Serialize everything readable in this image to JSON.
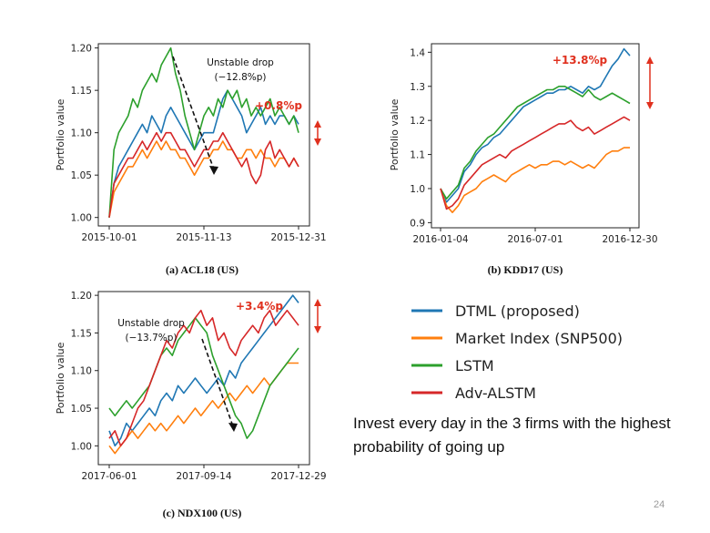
{
  "chart_data": [
    {
      "type": "line",
      "caption": "(a) ACL18 (US)",
      "ylabel": "Portfolio value",
      "ylim": [
        0.99,
        1.205
      ],
      "yticks": [
        "1.00",
        "1.05",
        "1.10",
        "1.15",
        "1.20"
      ],
      "xticks": [
        "2015-10-01",
        "2015-11-13",
        "2015-12-31"
      ],
      "annotation": [
        "Unstable drop",
        "(−12.8%p)"
      ],
      "gain_label": "+0.8%p",
      "series": [
        {
          "key": "dtml",
          "values": [
            1.0,
            1.04,
            1.06,
            1.07,
            1.08,
            1.09,
            1.1,
            1.11,
            1.1,
            1.12,
            1.11,
            1.1,
            1.12,
            1.13,
            1.12,
            1.11,
            1.1,
            1.09,
            1.08,
            1.09,
            1.1,
            1.1,
            1.1,
            1.12,
            1.14,
            1.15,
            1.14,
            1.13,
            1.12,
            1.1,
            1.11,
            1.12,
            1.13,
            1.11,
            1.12,
            1.11,
            1.12,
            1.12,
            1.11,
            1.12,
            1.11
          ]
        },
        {
          "key": "market",
          "values": [
            1.0,
            1.03,
            1.04,
            1.05,
            1.06,
            1.06,
            1.07,
            1.08,
            1.07,
            1.08,
            1.09,
            1.08,
            1.09,
            1.08,
            1.08,
            1.07,
            1.07,
            1.06,
            1.05,
            1.06,
            1.07,
            1.07,
            1.08,
            1.08,
            1.09,
            1.08,
            1.08,
            1.07,
            1.07,
            1.08,
            1.08,
            1.07,
            1.08,
            1.07,
            1.07,
            1.06,
            1.07,
            1.07,
            1.06,
            1.07,
            1.06
          ]
        },
        {
          "key": "lstm",
          "values": [
            1.0,
            1.08,
            1.1,
            1.11,
            1.12,
            1.14,
            1.13,
            1.15,
            1.16,
            1.17,
            1.16,
            1.18,
            1.19,
            1.2,
            1.17,
            1.15,
            1.12,
            1.1,
            1.08,
            1.1,
            1.12,
            1.13,
            1.12,
            1.14,
            1.13,
            1.15,
            1.14,
            1.15,
            1.13,
            1.14,
            1.12,
            1.13,
            1.12,
            1.13,
            1.14,
            1.12,
            1.13,
            1.12,
            1.11,
            1.12,
            1.1
          ]
        },
        {
          "key": "advalstm",
          "values": [
            1.0,
            1.04,
            1.05,
            1.06,
            1.07,
            1.07,
            1.08,
            1.09,
            1.08,
            1.09,
            1.1,
            1.09,
            1.1,
            1.1,
            1.09,
            1.08,
            1.08,
            1.07,
            1.06,
            1.07,
            1.08,
            1.08,
            1.09,
            1.09,
            1.1,
            1.09,
            1.08,
            1.07,
            1.06,
            1.07,
            1.05,
            1.04,
            1.05,
            1.08,
            1.09,
            1.07,
            1.08,
            1.07,
            1.06,
            1.07,
            1.06
          ]
        }
      ]
    },
    {
      "type": "line",
      "caption": "(b) KDD17 (US)",
      "ylabel": "Portfolio value",
      "ylim": [
        0.885,
        1.425
      ],
      "yticks": [
        "0.9",
        "1.0",
        "1.1",
        "1.2",
        "1.3",
        "1.4"
      ],
      "xticks": [
        "2016-01-04",
        "2016-07-01",
        "2016-12-30"
      ],
      "gain_label": "+13.8%p",
      "series": [
        {
          "key": "dtml",
          "values": [
            1.0,
            0.96,
            0.98,
            1.0,
            1.05,
            1.07,
            1.1,
            1.12,
            1.13,
            1.15,
            1.16,
            1.18,
            1.2,
            1.22,
            1.24,
            1.25,
            1.26,
            1.27,
            1.28,
            1.28,
            1.29,
            1.29,
            1.3,
            1.29,
            1.28,
            1.3,
            1.29,
            1.3,
            1.33,
            1.36,
            1.38,
            1.41,
            1.39
          ]
        },
        {
          "key": "market",
          "values": [
            1.0,
            0.95,
            0.93,
            0.95,
            0.98,
            0.99,
            1.0,
            1.02,
            1.03,
            1.04,
            1.03,
            1.02,
            1.04,
            1.05,
            1.06,
            1.07,
            1.06,
            1.07,
            1.07,
            1.08,
            1.08,
            1.07,
            1.08,
            1.07,
            1.06,
            1.07,
            1.06,
            1.08,
            1.1,
            1.11,
            1.11,
            1.12,
            1.12
          ]
        },
        {
          "key": "lstm",
          "values": [
            1.0,
            0.97,
            0.99,
            1.01,
            1.06,
            1.08,
            1.11,
            1.13,
            1.15,
            1.16,
            1.18,
            1.2,
            1.22,
            1.24,
            1.25,
            1.26,
            1.27,
            1.28,
            1.29,
            1.29,
            1.3,
            1.3,
            1.29,
            1.28,
            1.27,
            1.29,
            1.27,
            1.26,
            1.27,
            1.28,
            1.27,
            1.26,
            1.25
          ]
        },
        {
          "key": "advalstm",
          "values": [
            1.0,
            0.94,
            0.95,
            0.97,
            1.01,
            1.03,
            1.05,
            1.07,
            1.08,
            1.09,
            1.1,
            1.09,
            1.11,
            1.12,
            1.13,
            1.14,
            1.15,
            1.16,
            1.17,
            1.18,
            1.19,
            1.19,
            1.2,
            1.18,
            1.17,
            1.18,
            1.16,
            1.17,
            1.18,
            1.19,
            1.2,
            1.21,
            1.2
          ]
        }
      ]
    },
    {
      "type": "line",
      "caption": "(c) NDX100 (US)",
      "ylabel": "Portfolio value",
      "ylim": [
        0.975,
        1.205
      ],
      "yticks": [
        "1.00",
        "1.05",
        "1.10",
        "1.15",
        "1.20"
      ],
      "xticks": [
        "2017-06-01",
        "2017-09-14",
        "2017-12-29"
      ],
      "annotation": [
        "Unstable drop",
        "(−13.7%p)"
      ],
      "gain_label": "+3.4%p",
      "series": [
        {
          "key": "dtml",
          "values": [
            1.02,
            1.0,
            1.01,
            1.03,
            1.02,
            1.03,
            1.04,
            1.05,
            1.04,
            1.06,
            1.07,
            1.06,
            1.08,
            1.07,
            1.08,
            1.09,
            1.08,
            1.07,
            1.08,
            1.09,
            1.08,
            1.1,
            1.09,
            1.11,
            1.12,
            1.13,
            1.14,
            1.15,
            1.16,
            1.17,
            1.18,
            1.19,
            1.2,
            1.19
          ]
        },
        {
          "key": "market",
          "values": [
            1.0,
            0.99,
            1.0,
            1.01,
            1.02,
            1.01,
            1.02,
            1.03,
            1.02,
            1.03,
            1.02,
            1.03,
            1.04,
            1.03,
            1.04,
            1.05,
            1.04,
            1.05,
            1.06,
            1.05,
            1.06,
            1.07,
            1.06,
            1.07,
            1.08,
            1.07,
            1.08,
            1.09,
            1.08,
            1.09,
            1.1,
            1.11,
            1.11,
            1.11
          ]
        },
        {
          "key": "lstm",
          "values": [
            1.05,
            1.04,
            1.05,
            1.06,
            1.05,
            1.06,
            1.07,
            1.08,
            1.1,
            1.12,
            1.13,
            1.12,
            1.14,
            1.15,
            1.16,
            1.17,
            1.16,
            1.15,
            1.12,
            1.1,
            1.08,
            1.06,
            1.04,
            1.03,
            1.01,
            1.02,
            1.04,
            1.06,
            1.08,
            1.09,
            1.1,
            1.11,
            1.12,
            1.13
          ]
        },
        {
          "key": "advalstm",
          "values": [
            1.01,
            1.02,
            1.0,
            1.01,
            1.03,
            1.05,
            1.06,
            1.08,
            1.1,
            1.12,
            1.14,
            1.13,
            1.15,
            1.16,
            1.15,
            1.17,
            1.18,
            1.16,
            1.17,
            1.14,
            1.15,
            1.13,
            1.12,
            1.14,
            1.15,
            1.16,
            1.15,
            1.17,
            1.18,
            1.16,
            1.17,
            1.18,
            1.17,
            1.16
          ]
        }
      ]
    }
  ],
  "legend": [
    {
      "key": "dtml",
      "label": "DTML (proposed)",
      "color": "#1f77b4"
    },
    {
      "key": "market",
      "label": "Market Index (SNP500)",
      "color": "#ff7f0e"
    },
    {
      "key": "lstm",
      "label": "LSTM",
      "color": "#2ca02c"
    },
    {
      "key": "advalstm",
      "label": "Adv-ALSTM",
      "color": "#d62728"
    }
  ],
  "highlight_color": "#e0301e",
  "note": "Invest every day in the 3 firms with the highest probability of going up",
  "page_number": "24"
}
